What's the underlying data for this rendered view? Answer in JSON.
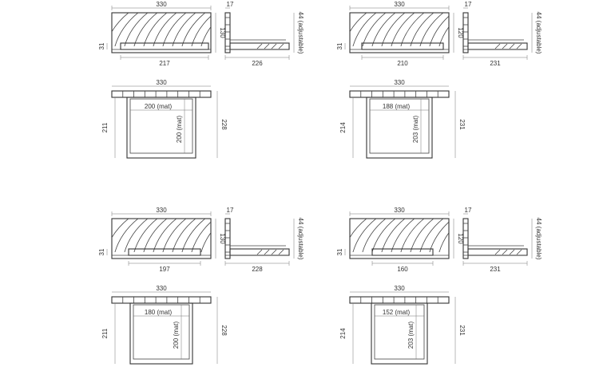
{
  "variants": [
    {
      "front": {
        "width": "330",
        "height": "130",
        "base": "31",
        "platform": "217"
      },
      "side": {
        "top": "17",
        "height": "44 (adjustable)",
        "depth": "226"
      },
      "plan": {
        "width": "330",
        "mat_w": "200 (mat)",
        "mat_l": "200 (mat)",
        "depth_left": "211",
        "depth_right": "228"
      }
    },
    {
      "front": {
        "width": "330",
        "height": "120",
        "base": "31",
        "platform": "210"
      },
      "side": {
        "top": "17",
        "height": "44 (adjustable)",
        "depth": "231"
      },
      "plan": {
        "width": "330",
        "mat_w": "188 (mat)",
        "mat_l": "203 (mat)",
        "depth_left": "214",
        "depth_right": "231"
      }
    },
    {
      "front": {
        "width": "330",
        "height": "130",
        "base": "31",
        "platform": "197"
      },
      "side": {
        "top": "17",
        "height": "44 (adjustable)",
        "depth": "228"
      },
      "plan": {
        "width": "330",
        "mat_w": "180 (mat)",
        "mat_l": "200 (mat)",
        "depth_left": "211",
        "depth_right": "228"
      }
    },
    {
      "front": {
        "width": "330",
        "height": "120",
        "base": "31",
        "platform": "160"
      },
      "side": {
        "top": "17",
        "height": "44 (adjustable)",
        "depth": "231"
      },
      "plan": {
        "width": "330",
        "mat_w": "152 (mat)",
        "mat_l": "203 (mat)",
        "depth_left": "214",
        "depth_right": "231"
      }
    }
  ]
}
